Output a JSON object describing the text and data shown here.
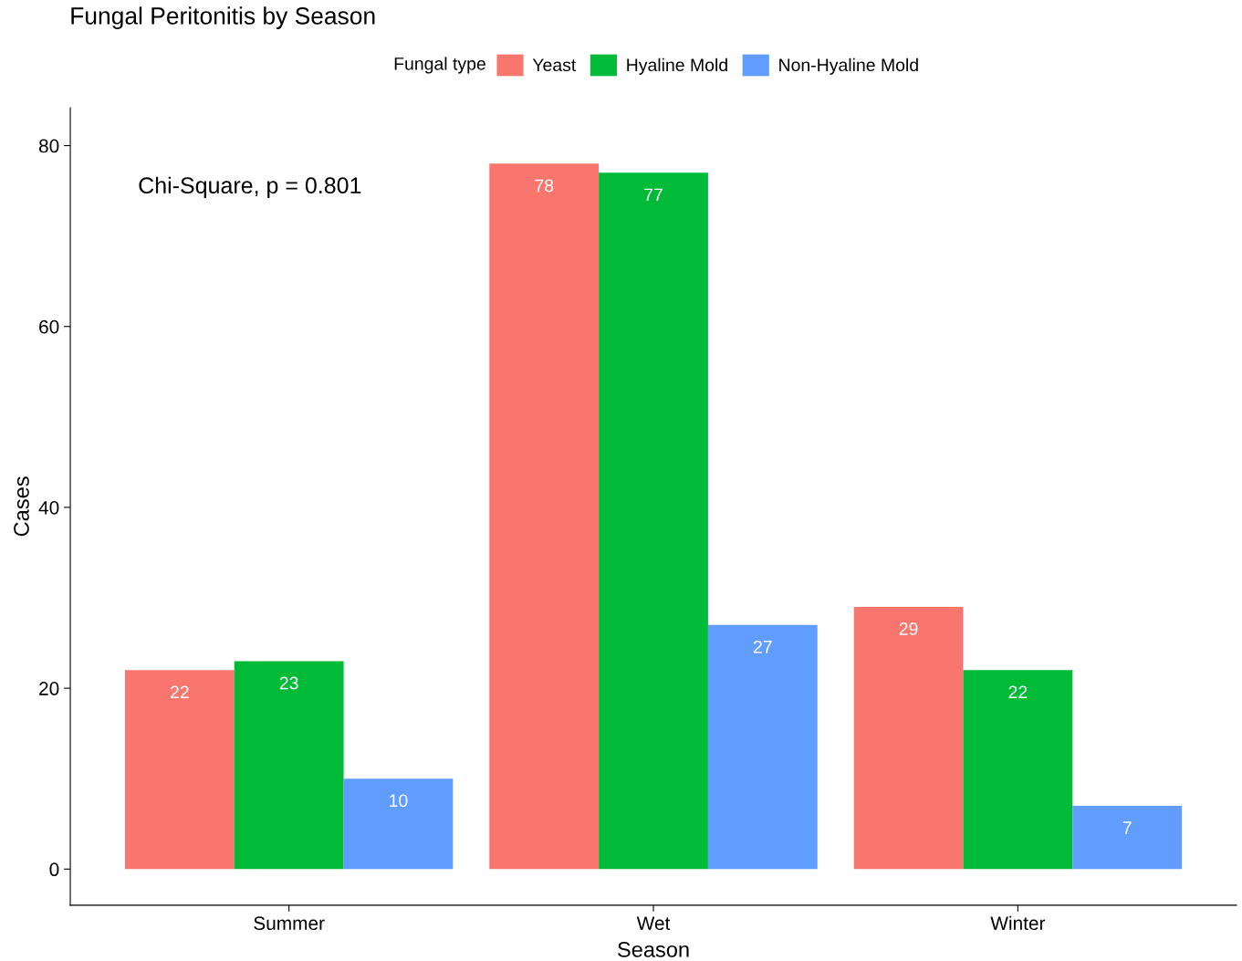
{
  "chart_data": {
    "type": "bar",
    "title": "Fungal Peritonitis by Season",
    "xlabel": "Season",
    "ylabel": "Cases",
    "legend_title": "Fungal type",
    "categories": [
      "Summer",
      "Wet",
      "Winter"
    ],
    "series": [
      {
        "name": "Yeast",
        "color": "#f8766d",
        "values": [
          22,
          78,
          29
        ]
      },
      {
        "name": "Hyaline Mold",
        "color": "#00ba38",
        "values": [
          23,
          77,
          22
        ]
      },
      {
        "name": "Non-Hyaline Mold",
        "color": "#619cff",
        "values": [
          10,
          27,
          7
        ]
      }
    ],
    "ylim": [
      -4,
      84.2
    ],
    "yticks": [
      0,
      20,
      40,
      60,
      80
    ],
    "grid": false,
    "legend": "top",
    "data_labels": true,
    "annotations": [
      "Chi-Square, p = 0.801"
    ]
  }
}
